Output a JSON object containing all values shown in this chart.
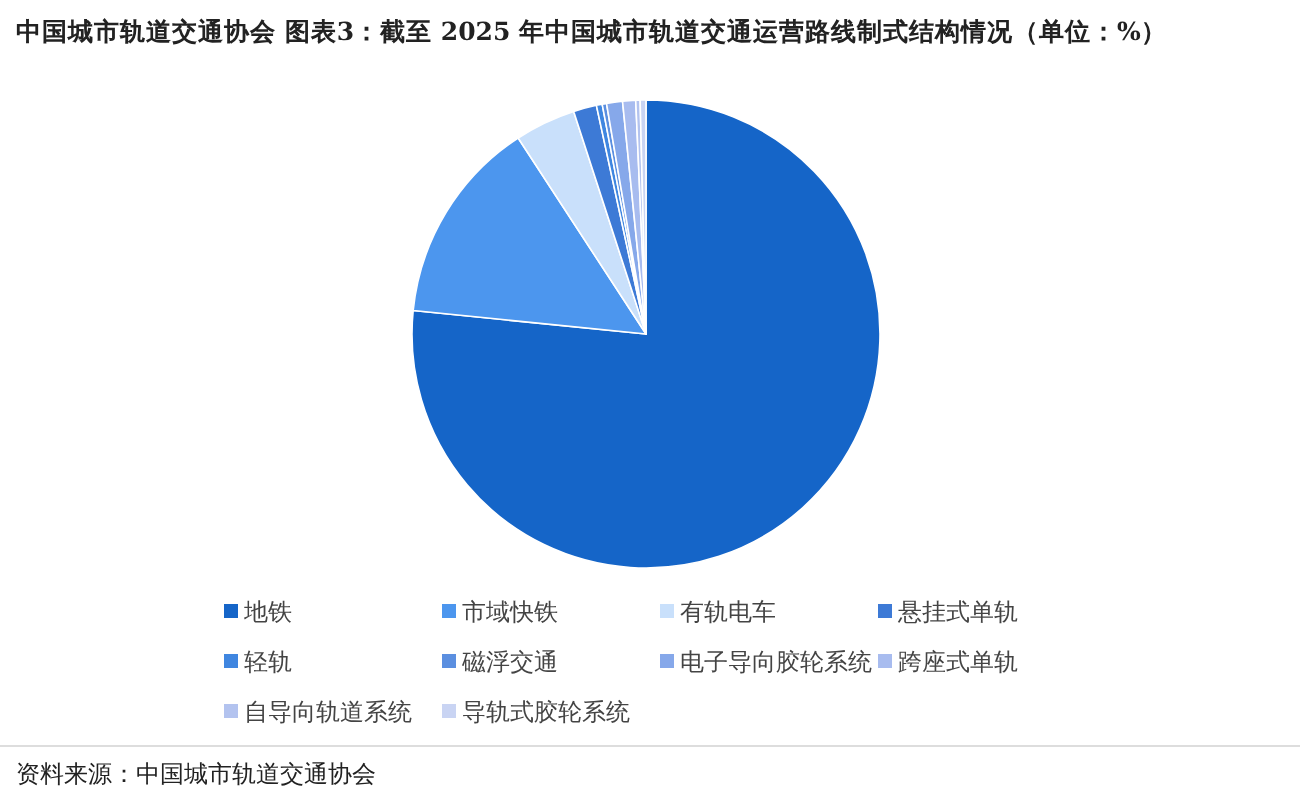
{
  "chart_data": {
    "type": "pie",
    "title": "中国城市轨道交通协会  图表3：截至 2025 年中国城市轨道交通运营路线制式结构情况（单位：%）",
    "categories": [
      "地铁",
      "市域快铁",
      "有轨电车",
      "悬挂式单轨",
      "轻轨",
      "磁浮交通",
      "电子导向胶轮系统",
      "跨座式单轨",
      "自导向轨道系统",
      "导轨式胶轮系统"
    ],
    "values": [
      76.6,
      14.2,
      4.2,
      1.6,
      0.4,
      0.3,
      1.1,
      0.9,
      0.3,
      0.4
    ],
    "colors": [
      "#1565c8",
      "#4c96ee",
      "#c9e0fb",
      "#3d7ad6",
      "#3f86e0",
      "#5b8fe0",
      "#86a8ea",
      "#a8bcef",
      "#b3c3ef",
      "#c9d4f3"
    ],
    "legend": "bottom",
    "annotations": [
      "资料来源：中国城市轨道交通协会"
    ]
  }
}
